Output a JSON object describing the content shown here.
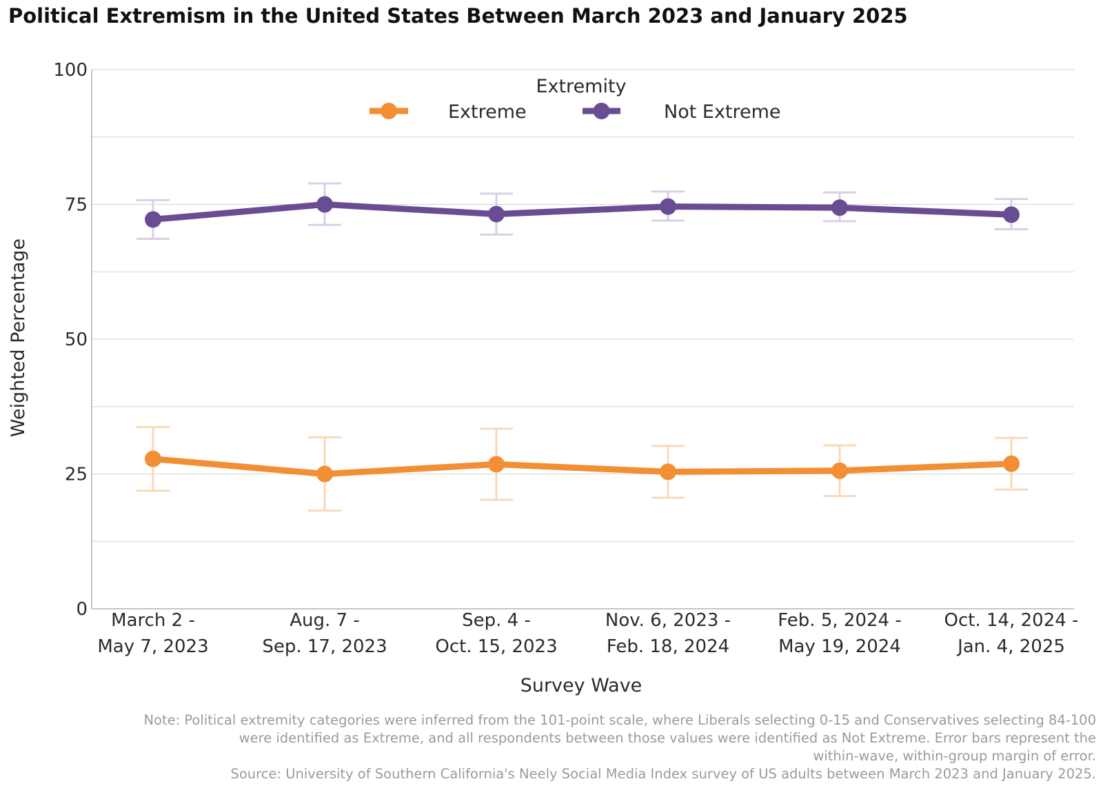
{
  "chart_data": {
    "type": "line",
    "title": "Political Extremism in the United States Between March 2023 and January 2025",
    "xlabel": "Survey Wave",
    "ylabel": "Weighted Percentage",
    "ylim": [
      0,
      100
    ],
    "y_ticks": [
      "0",
      "25",
      "50",
      "75",
      "100"
    ],
    "grid": true,
    "legend": {
      "title": "Extremity",
      "placement": "top-center"
    },
    "categories": [
      [
        "March 2 -",
        "May 7, 2023"
      ],
      [
        "Aug. 7 -",
        "Sep. 17, 2023"
      ],
      [
        "Sep. 4 -",
        "Oct. 15, 2023"
      ],
      [
        "Nov. 6, 2023 -",
        "Feb. 18, 2024"
      ],
      [
        "Feb. 5, 2024 -",
        "May 19, 2024"
      ],
      [
        "Oct. 14, 2024 -",
        "Jan. 4, 2025"
      ]
    ],
    "series": [
      {
        "name": "Extreme",
        "color": "#f28e33",
        "error_color": "#fbd9b9",
        "values": [
          27.8,
          25.0,
          26.8,
          25.4,
          25.6,
          26.9
        ],
        "error_low": [
          21.9,
          18.2,
          20.2,
          20.6,
          20.9,
          22.1
        ],
        "error_high": [
          33.7,
          31.8,
          33.4,
          30.2,
          30.3,
          31.7
        ]
      },
      {
        "name": "Not Extreme",
        "color": "#6a4c93",
        "error_color": "#d9cfe7",
        "values": [
          72.2,
          75.0,
          73.2,
          74.6,
          74.4,
          73.1
        ],
        "error_low": [
          68.6,
          71.2,
          69.4,
          72.0,
          71.9,
          70.4
        ],
        "error_high": [
          75.8,
          78.9,
          77.0,
          77.4,
          77.2,
          76.0
        ]
      }
    ]
  },
  "notes": {
    "note_line1": "Note: Political extremity categories were inferred from the 101-point scale, where Liberals selecting 0-15 and Conservatives selecting 84-100",
    "note_line2": "were identified as Extreme, and all respondents between those values were identified as Not Extreme. Error bars represent the",
    "note_line3": "within-wave, within-group margin of error.",
    "source": "Source: University of Southern California's Neely Social Media Index survey of US adults between March 2023 and January 2025."
  }
}
